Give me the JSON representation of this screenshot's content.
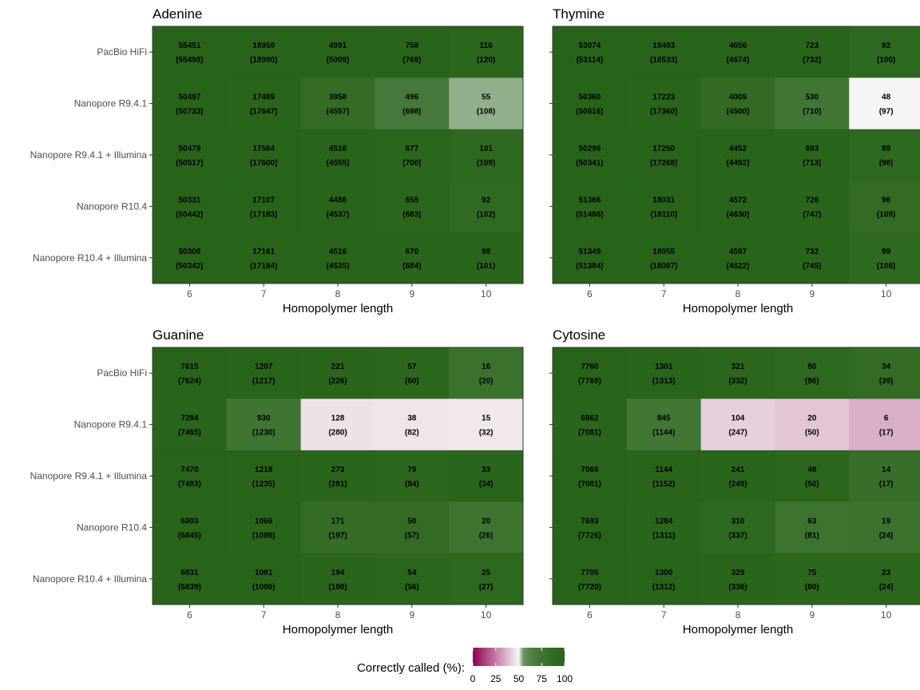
{
  "chart_data": {
    "type": "heatmap",
    "xlabel": "Homopolymer length",
    "x": [
      "6",
      "7",
      "8",
      "9",
      "10"
    ],
    "rows": [
      "PacBio HiFi",
      "Nanopore R9.4.1",
      "Nanopore R9.4.1 + Illumina",
      "Nanopore R10.4",
      "Nanopore R10.4 + Illumina"
    ],
    "legend": {
      "title": "Correctly called (%):",
      "ticks": [
        "0",
        "25",
        "50",
        "75",
        "100"
      ],
      "range": [
        0,
        100
      ],
      "colors": [
        "#8e0152",
        "#f7f7f7",
        "#276419"
      ],
      "position": "bottom"
    },
    "panels": [
      {
        "title": "Adenine",
        "correct": [
          [
            55451,
            18959,
            4991,
            758,
            116
          ],
          [
            50497,
            17489,
            3958,
            496,
            55
          ],
          [
            50479,
            17564,
            4516,
            677,
            101
          ],
          [
            50331,
            17107,
            4486,
            655,
            92
          ],
          [
            50308,
            17161,
            4516,
            670,
            98
          ]
        ],
        "total": [
          [
            55498,
            18990,
            5009,
            769,
            120
          ],
          [
            50733,
            17647,
            4557,
            698,
            108
          ],
          [
            50517,
            17600,
            4555,
            700,
            109
          ],
          [
            50442,
            17183,
            4537,
            683,
            102
          ],
          [
            50342,
            17184,
            4535,
            684,
            101
          ]
        ]
      },
      {
        "title": "Thymine",
        "correct": [
          [
            53074,
            18493,
            4656,
            723,
            92
          ],
          [
            50360,
            17223,
            4009,
            530,
            48
          ],
          [
            50296,
            17250,
            4452,
            693,
            89
          ],
          [
            51366,
            18031,
            4572,
            726,
            96
          ],
          [
            51349,
            18055,
            4597,
            732,
            99
          ]
        ],
        "total": [
          [
            53114,
            18533,
            4674,
            732,
            100
          ],
          [
            50616,
            17360,
            4500,
            710,
            97
          ],
          [
            50341,
            17268,
            4492,
            713,
            98
          ],
          [
            51486,
            18110,
            4630,
            747,
            109
          ],
          [
            51384,
            18087,
            4622,
            745,
            108
          ]
        ]
      },
      {
        "title": "Guanine",
        "correct": [
          [
            7615,
            1207,
            221,
            57,
            16
          ],
          [
            7284,
            930,
            128,
            38,
            15
          ],
          [
            7470,
            1218,
            273,
            79,
            33
          ],
          [
            6803,
            1066,
            171,
            50,
            20
          ],
          [
            6831,
            1081,
            194,
            54,
            25
          ]
        ],
        "total": [
          [
            7624,
            1217,
            226,
            60,
            20
          ],
          [
            7465,
            1230,
            280,
            82,
            32
          ],
          [
            7483,
            1235,
            281,
            84,
            34
          ],
          [
            6845,
            1086,
            197,
            57,
            26
          ],
          [
            6839,
            1086,
            198,
            56,
            27
          ]
        ]
      },
      {
        "title": "Cytosine",
        "correct": [
          [
            7760,
            1301,
            321,
            80,
            34
          ],
          [
            6862,
            845,
            104,
            20,
            6
          ],
          [
            7069,
            1144,
            241,
            48,
            14
          ],
          [
            7693,
            1284,
            310,
            63,
            19
          ],
          [
            7705,
            1300,
            329,
            75,
            23
          ]
        ],
        "total": [
          [
            7769,
            1313,
            332,
            86,
            39
          ],
          [
            7081,
            1144,
            247,
            50,
            17
          ],
          [
            7081,
            1152,
            249,
            50,
            17
          ],
          [
            7726,
            1311,
            337,
            81,
            24
          ],
          [
            7720,
            1312,
            336,
            80,
            24
          ]
        ]
      }
    ]
  }
}
